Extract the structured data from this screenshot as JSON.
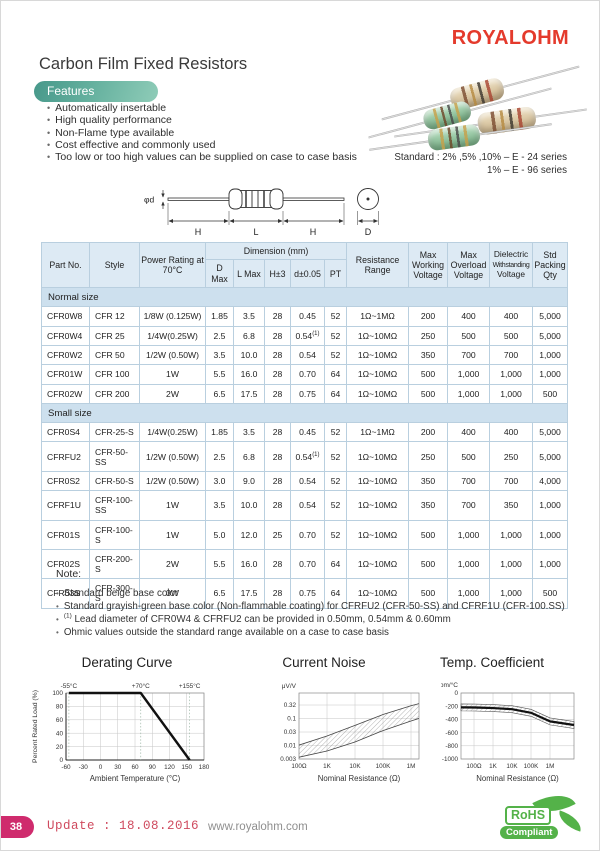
{
  "brand": "ROYALOHM",
  "page": {
    "title": "Carbon Film Fixed Resistors"
  },
  "features": {
    "badge": "Features",
    "items": [
      "Automatically insertable",
      "High quality performance",
      "Non-Flame type available",
      "Cost effective and commonly used",
      "Too low or too high values can be supplied on case to case basis"
    ]
  },
  "standard": {
    "line1": "Standard : 2%  ,5%  ,10% – E - 24 series",
    "line2": "1% – E - 96 series"
  },
  "drawing": {
    "labels": {
      "phi_d": "φd",
      "h_left": "H",
      "l": "L",
      "h_right": "H",
      "dia": "D"
    }
  },
  "table": {
    "header": {
      "part_no": "Part No.",
      "style": "Style",
      "power": "Power Rating at 70°C",
      "dimension": "Dimension (mm)",
      "dim_cols": [
        "D Max",
        "L Max",
        "H±3",
        "d±0.05",
        "PT"
      ],
      "resistance": "Resistance Range",
      "max_working": "Max Working Voltage",
      "max_overload": "Max Overload Voltage",
      "dielectric": "Dielectric Withstanding Voltage",
      "packing": "Std Packing Qty"
    },
    "sections": [
      {
        "label": "Normal size",
        "rows": [
          [
            "CFR0W8",
            "CFR 12",
            "1/8W (0.125W)",
            "1.85",
            "3.5",
            "28",
            "0.45",
            "52",
            "1Ω~1MΩ",
            "200",
            "400",
            "400",
            "5,000"
          ],
          [
            "CFR0W4",
            "CFR 25",
            "1/4W(0.25W)",
            "2.5",
            "6.8",
            "28",
            "0.54(1)",
            "52",
            "1Ω~10MΩ",
            "250",
            "500",
            "500",
            "5,000"
          ],
          [
            "CFR0W2",
            "CFR 50",
            "1/2W (0.50W)",
            "3.5",
            "10.0",
            "28",
            "0.54",
            "52",
            "1Ω~10MΩ",
            "350",
            "700",
            "700",
            "1,000"
          ],
          [
            "CFR01W",
            "CFR 100",
            "1W",
            "5.5",
            "16.0",
            "28",
            "0.70",
            "64",
            "1Ω~10MΩ",
            "500",
            "1,000",
            "1,000",
            "1,000"
          ],
          [
            "CFR02W",
            "CFR 200",
            "2W",
            "6.5",
            "17.5",
            "28",
            "0.75",
            "64",
            "1Ω~10MΩ",
            "500",
            "1,000",
            "1,000",
            "500"
          ]
        ]
      },
      {
        "label": "Small size",
        "rows": [
          [
            "CFR0S4",
            "CFR-25-S",
            "1/4W(0.25W)",
            "1.85",
            "3.5",
            "28",
            "0.45",
            "52",
            "1Ω~1MΩ",
            "200",
            "400",
            "400",
            "5,000"
          ],
          [
            "CFRFU2",
            "CFR-50-SS",
            "1/2W (0.50W)",
            "2.5",
            "6.8",
            "28",
            "0.54(1)",
            "52",
            "1Ω~10MΩ",
            "250",
            "500",
            "250",
            "5,000"
          ],
          [
            "CFR0S2",
            "CFR-50-S",
            "1/2W (0.50W)",
            "3.0",
            "9.0",
            "28",
            "0.54",
            "52",
            "1Ω~10MΩ",
            "350",
            "700",
            "700",
            "4,000"
          ],
          [
            "CFRF1U",
            "CFR-100-SS",
            "1W",
            "3.5",
            "10.0",
            "28",
            "0.54",
            "52",
            "1Ω~10MΩ",
            "350",
            "700",
            "350",
            "1,000"
          ],
          [
            "CFR01S",
            "CFR-100-S",
            "1W",
            "5.0",
            "12.0",
            "25",
            "0.70",
            "52",
            "1Ω~10MΩ",
            "500",
            "1,000",
            "1,000",
            "1,000"
          ],
          [
            "CFR02S",
            "CFR-200-S",
            "2W",
            "5.5",
            "16.0",
            "28",
            "0.70",
            "64",
            "1Ω~10MΩ",
            "500",
            "1,000",
            "1,000",
            "1,000"
          ],
          [
            "CFR03S",
            "CFR-300-S",
            "3W",
            "6.5",
            "17.5",
            "28",
            "0.75",
            "64",
            "1Ω~10MΩ",
            "500",
            "1,000",
            "1,000",
            "500"
          ]
        ]
      }
    ]
  },
  "notes": {
    "title": "Note:",
    "items": [
      "Standard beige base color",
      "Standard grayish-green base color (Non-flammable coating) for CFRFU2 (CFR-50-SS) and CFRF1U (CFR-100.SS)",
      "(1) Lead diameter of CFR0W4 & CFRFU2 can be provided in 0.50mm, 0.54mm & 0.60mm",
      "Ohmic values outside the standard range available on a case to case basis"
    ]
  },
  "chart_data": [
    {
      "id": "derating",
      "type": "line",
      "title": "Derating Curve",
      "xlabel": "Ambient Temperature (°C)",
      "ylabel": "Percent Rated Load (%)",
      "xlim": [
        -60,
        180
      ],
      "ylim": [
        0,
        100
      ],
      "xticks": [
        -60,
        -30,
        0,
        30,
        60,
        90,
        120,
        150,
        180
      ],
      "yticks": [
        0,
        20,
        40,
        60,
        80,
        100
      ],
      "grid": true,
      "annotations": [
        {
          "label": "-55°C",
          "x": -55
        },
        {
          "label": "+70°C",
          "x": 70
        },
        {
          "label": "+155°C",
          "x": 155
        }
      ],
      "series": [
        {
          "name": "derating",
          "points": [
            [
              -55,
              100
            ],
            [
              70,
              100
            ],
            [
              155,
              0
            ]
          ]
        }
      ]
    },
    {
      "id": "current-noise",
      "type": "band",
      "title": "Current Noise",
      "xlabel": "Nominal Resistance (Ω)",
      "ylabel": "μV/V",
      "x_positions": [
        "100Ω",
        "1K",
        "10K",
        "100K",
        "1M",
        "right-edge"
      ],
      "xticks": [
        "100Ω",
        "1K",
        "10K",
        "100K",
        "1M"
      ],
      "yticks": [
        "0.32",
        "0.1",
        "0.03",
        "0.01",
        "0.003"
      ],
      "grid": true,
      "band_upper": [
        0.01,
        0.022,
        0.055,
        0.14,
        0.3,
        0.36
      ],
      "band_lower": [
        0.0035,
        0.006,
        0.013,
        0.035,
        0.08,
        0.1
      ]
    },
    {
      "id": "temp-coefficient",
      "type": "band",
      "title": "Temp. Coefficient",
      "xlabel": "Nominal Resistance (Ω)",
      "ylabel": "ppm/°C",
      "x_positions": [
        "left-edge",
        "100Ω",
        "1K",
        "10K",
        "100K",
        "1M",
        "right-edge"
      ],
      "xticks": [
        "100Ω",
        "1K",
        "10K",
        "100K",
        "1M"
      ],
      "yticks": [
        "0",
        "-200",
        "-400",
        "-600",
        "-800",
        "-1000"
      ],
      "grid": true,
      "center": [
        -218,
        -220,
        -228,
        -245,
        -300,
        -430,
        -485
      ],
      "band_halfwidth_ppm": 60
    }
  ],
  "footer": {
    "page_number": "38",
    "update": "Update : 18.08.2016",
    "website": "www.royalohm.com",
    "rohs_line1": "RoHS",
    "rohs_line2": "Compliant"
  },
  "colors": {
    "brand_red": "#e43a2c",
    "accent_teal": "#47988a",
    "table_header_bg": "#ddeaf4",
    "table_section_bg": "#cde0ee",
    "footer_pink": "#cf2b6d",
    "rohs_green": "#54b249"
  }
}
